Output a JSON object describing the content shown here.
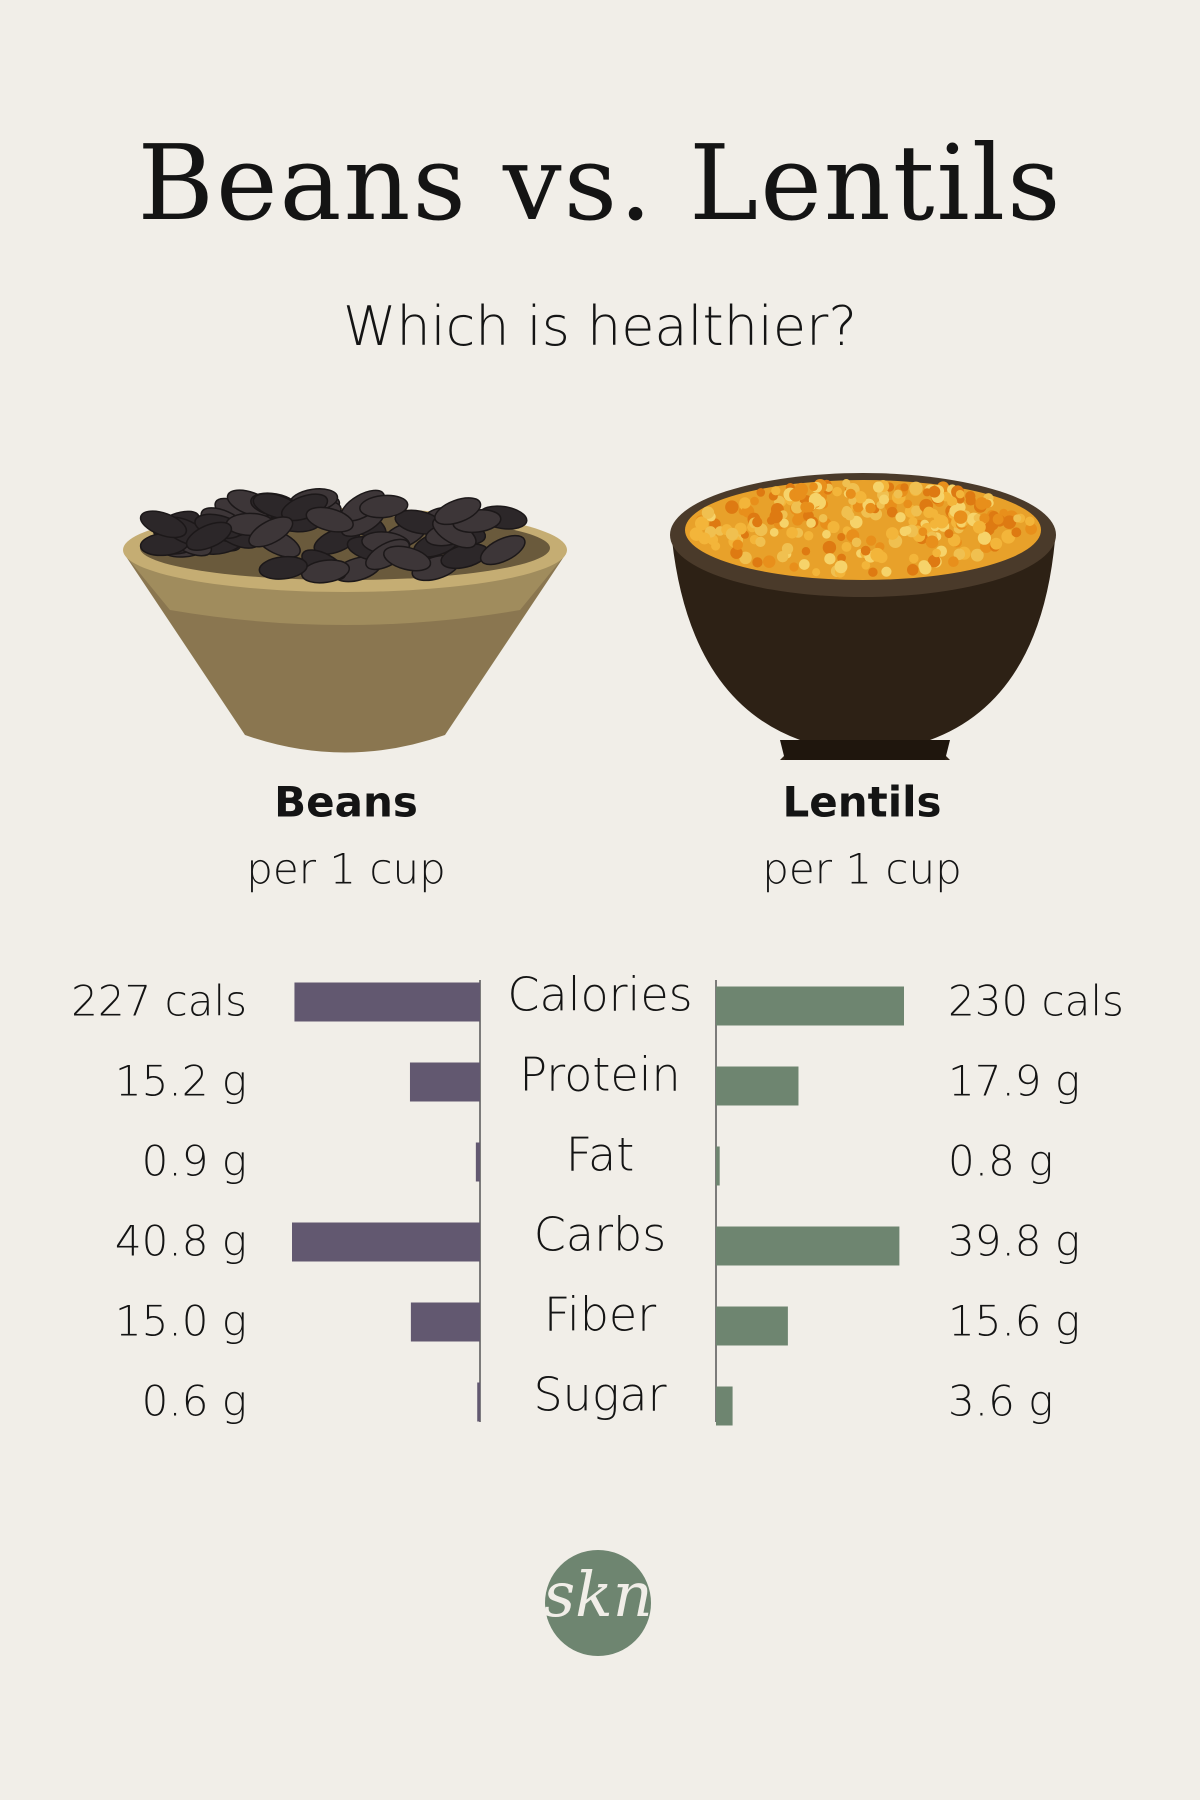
{
  "chart_data": {
    "type": "butterfly",
    "title": "Beans vs. Lentils",
    "subtitle": "Which is healthier?",
    "categories": [
      "Calories",
      "Protein",
      "Fat",
      "Carbs",
      "Fiber",
      "Sugar"
    ],
    "series": [
      {
        "name": "Beans",
        "subtitle": "per 1 cup",
        "color": "#625870",
        "values": [
          227,
          15.2,
          0.9,
          40.8,
          15.0,
          0.6
        ],
        "value_labels": [
          "227 cals",
          "15.2 g",
          "0.9 g",
          "40.8 g",
          "15.0 g",
          "0.6 g"
        ]
      },
      {
        "name": "Lentils",
        "subtitle": "per 1 cup",
        "color": "#6e8570",
        "values": [
          230,
          17.9,
          0.8,
          39.8,
          15.6,
          3.6
        ],
        "value_labels": [
          "230 cals",
          "17.9 g",
          "0.8 g",
          "39.8 g",
          "15.6 g",
          "3.6 g"
        ]
      }
    ],
    "logo": "skn"
  }
}
